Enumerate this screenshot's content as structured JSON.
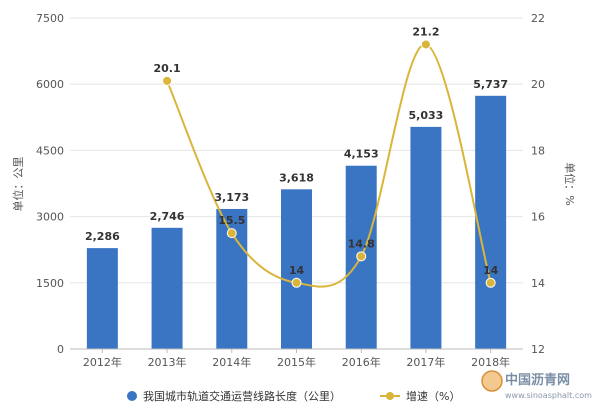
{
  "chart_data": {
    "type": "bar",
    "categories": [
      "2012年",
      "2013年",
      "2014年",
      "2015年",
      "2016年",
      "2017年",
      "2018年"
    ],
    "series": [
      {
        "name": "我国城市轨道交通运营线路长度（公里）",
        "chart": "bar",
        "axis": "left",
        "values": [
          2286,
          2746,
          3173,
          3618,
          4153,
          5033,
          5737
        ],
        "labels": [
          "2,286",
          "2,746",
          "3,173",
          "3,618",
          "4,153",
          "5,033",
          "5,737"
        ]
      },
      {
        "name": "增速（%）",
        "chart": "line",
        "axis": "right",
        "smooth": true,
        "values": [
          null,
          20.1,
          15.5,
          14,
          14.8,
          21.2,
          14
        ],
        "labels": [
          "",
          "20.1",
          "15.5",
          "14",
          "14.8",
          "21.2",
          "14"
        ]
      }
    ],
    "ylabel_left": "单位：公里",
    "ylabel_right": "单位：%",
    "ylim_left": [
      0,
      7500
    ],
    "yticks_left": [
      0,
      1500,
      3000,
      4500,
      6000,
      7500
    ],
    "ylim_right": [
      12,
      22
    ],
    "yticks_right": [
      12,
      14,
      16,
      18,
      20,
      22
    ],
    "grid": true,
    "legend_position": "bottom",
    "colors": {
      "bar": "#3a75c4",
      "line": "#d9b53a",
      "grid": "#e6e6e6"
    }
  },
  "watermark": {
    "text": "中国沥青网",
    "url": "www.sinoasphalt.com"
  }
}
